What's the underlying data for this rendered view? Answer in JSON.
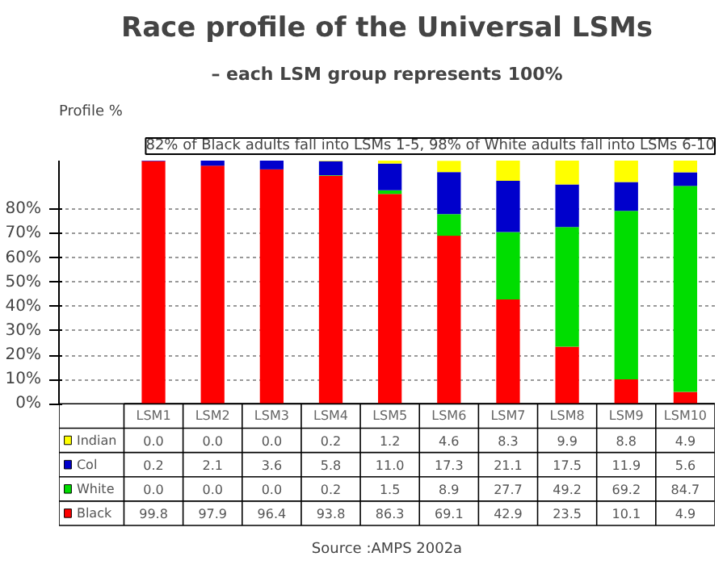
{
  "chart_data": {
    "type": "bar",
    "stacked": true,
    "title": "Race profile of the Universal LSMs",
    "subtitle": "– each LSM group represents 100%",
    "ylabel": "Profile %",
    "categories": [
      "LSM1",
      "LSM2",
      "LSM3",
      "LSM4",
      "LSM5",
      "LSM6",
      "LSM7",
      "LSM8",
      "LSM9",
      "LSM10"
    ],
    "series": [
      {
        "name": "Black",
        "color": "#ff0000",
        "values": [
          99.8,
          97.9,
          96.4,
          93.8,
          86.3,
          69.1,
          42.9,
          23.5,
          10.1,
          4.9
        ],
        "value_labels": [
          "99.8",
          "97.9",
          "96.4",
          "93.8",
          "86.3",
          "69.1",
          "42.9",
          "23.5",
          "10.1",
          "4.9"
        ]
      },
      {
        "name": "White",
        "color": "#00dd00",
        "values": [
          0.0,
          0.0,
          0.0,
          0.2,
          1.5,
          8.9,
          27.7,
          49.2,
          69.2,
          84.7
        ],
        "value_labels": [
          "0.0",
          "0.0",
          "0.0",
          "0.2",
          "1.5",
          "8.9",
          "27.7",
          "49.2",
          "69.2",
          "84.7"
        ]
      },
      {
        "name": "Col",
        "color": "#0000cc",
        "values": [
          0.2,
          2.1,
          3.6,
          5.8,
          11.0,
          17.3,
          21.1,
          17.5,
          11.9,
          5.6
        ],
        "value_labels": [
          "0.2",
          "2.1",
          "3.6",
          "5.8",
          "11.0",
          "17.3",
          "21.1",
          "17.5",
          "11.9",
          "5.6"
        ]
      },
      {
        "name": "Indian",
        "color": "#ffff00",
        "values": [
          0.0,
          0.0,
          0.0,
          0.2,
          1.2,
          4.6,
          8.3,
          9.9,
          8.8,
          4.9
        ],
        "value_labels": [
          "0.0",
          "0.0",
          "0.0",
          "0.2",
          "1.2",
          "4.6",
          "8.3",
          "9.9",
          "8.8",
          "4.9"
        ]
      }
    ],
    "ylim": [
      0,
      100
    ],
    "yticks": [
      {
        "value": 0,
        "label": "0%"
      },
      {
        "value": 10,
        "label": "10%"
      },
      {
        "value": 20,
        "label": "20%"
      },
      {
        "value": 30,
        "label": "30%"
      },
      {
        "value": 40,
        "label": "40%"
      },
      {
        "value": 50,
        "label": "50%"
      },
      {
        "value": 60,
        "label": "60%"
      },
      {
        "value": 70,
        "label": "70%"
      },
      {
        "value": 80,
        "label": "80%"
      }
    ],
    "grid": "y",
    "legend": "bottom",
    "annotations": [
      "82% of Black adults fall into LSMs 1-5, 98% of White adults fall into LSMs 6-10",
      "Source :AMPS 2002a"
    ]
  }
}
